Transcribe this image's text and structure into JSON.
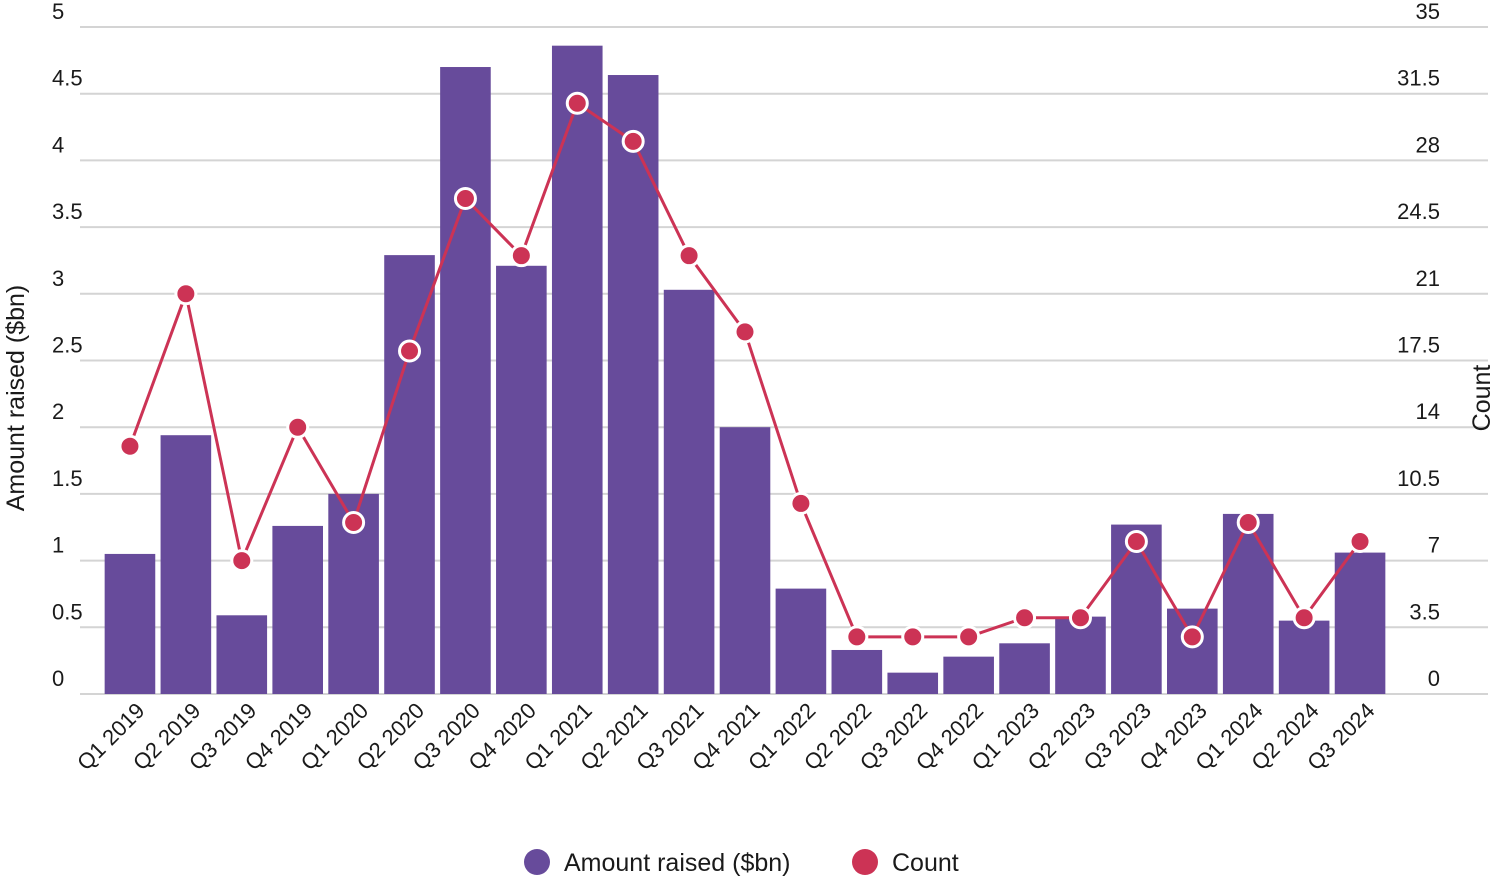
{
  "chart_data": {
    "type": "bar+line",
    "categories": [
      "Q1 2019",
      "Q2 2019",
      "Q3 2019",
      "Q4 2019",
      "Q1 2020",
      "Q2 2020",
      "Q3 2020",
      "Q4 2020",
      "Q1 2021",
      "Q2 2021",
      "Q3 2021",
      "Q4 2021",
      "Q1 2022",
      "Q2 2022",
      "Q3 2022",
      "Q4 2022",
      "Q1 2023",
      "Q2 2023",
      "Q3 2023",
      "Q4 2023",
      "Q1 2024",
      "Q2 2024",
      "Q3 2024"
    ],
    "series": [
      {
        "name": "Amount raised ($bn)",
        "type": "bar",
        "axis": "left",
        "color": "#674b9b",
        "values": [
          1.05,
          1.94,
          0.59,
          1.26,
          1.5,
          3.29,
          4.7,
          3.21,
          4.86,
          4.64,
          3.03,
          2.0,
          0.79,
          0.33,
          0.16,
          0.28,
          0.38,
          0.58,
          1.27,
          0.64,
          1.35,
          0.55,
          1.06
        ]
      },
      {
        "name": "Count",
        "type": "line",
        "axis": "right",
        "color": "#cc3355",
        "values": [
          13,
          21,
          7,
          14,
          9,
          18,
          26,
          23,
          31,
          29,
          23,
          19,
          10,
          3,
          3,
          3,
          4,
          4,
          8,
          3,
          9,
          4,
          8
        ]
      }
    ],
    "y_left": {
      "label": "Amount raised ($bn)",
      "ylim": [
        0,
        5
      ],
      "ticks": [
        "0",
        "0.5",
        "1",
        "1.5",
        "2",
        "2.5",
        "3",
        "3.5",
        "4",
        "4.5",
        "5"
      ]
    },
    "y_right": {
      "label": "Count",
      "ylim": [
        0,
        35
      ],
      "ticks": [
        "0",
        "3.5",
        "7",
        "10.5",
        "14",
        "17.5",
        "21",
        "24.5",
        "28",
        "31.5",
        "35"
      ]
    },
    "legend": {
      "position": "bottom-center",
      "items": [
        "Amount raised ($bn)",
        "Count"
      ]
    },
    "grid": true
  }
}
